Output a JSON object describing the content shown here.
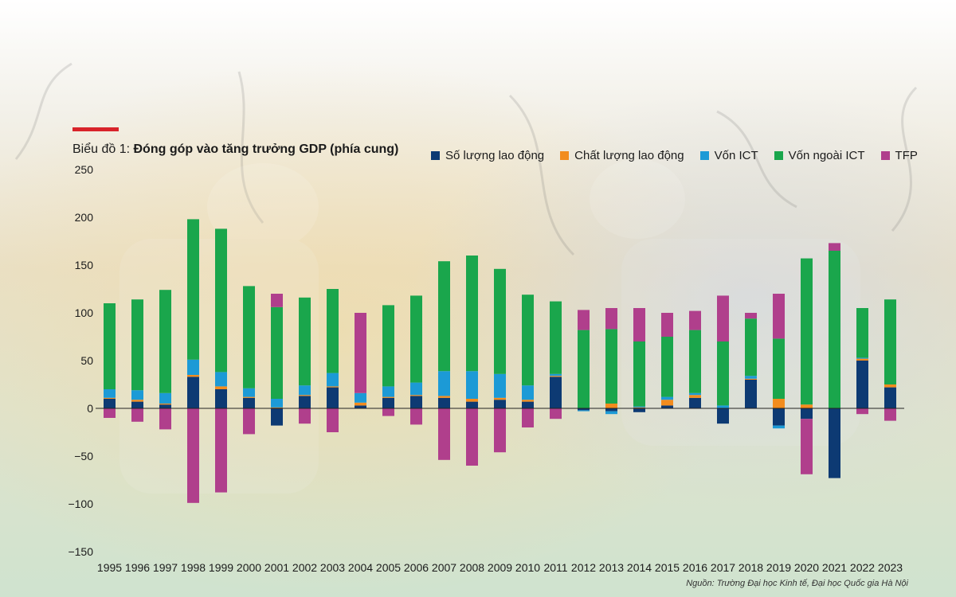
{
  "colors": {
    "accent": "#d8232a",
    "labor_quantity": "#0d3a73",
    "labor_quality": "#f28c1e",
    "ict_capital": "#1c9ad6",
    "non_ict_capital": "#1aa64c",
    "tfp": "#b03f8c"
  },
  "header": {
    "title_prefix": "Biểu đồ 1: ",
    "title_main": "Đóng góp vào tăng trưởng GDP (phía cung)"
  },
  "source": "Nguồn: Trường Đại học Kinh tế, Đại học Quốc gia Hà Nội",
  "chart_data": {
    "type": "bar",
    "stacked": true,
    "title": "Biểu đồ 1: Đóng góp vào tăng trưởng GDP (phía cung)",
    "xlabel": "",
    "ylabel": "",
    "ylim": [
      -150,
      250
    ],
    "yticks": [
      250,
      200,
      150,
      100,
      50,
      0,
      -50,
      -100,
      -150
    ],
    "legend_position": "top",
    "categories": [
      "1995",
      "1996",
      "1997",
      "1998",
      "1999",
      "2000",
      "2001",
      "2002",
      "2003",
      "2004",
      "2005",
      "2006",
      "2007",
      "2008",
      "2009",
      "2010",
      "2011",
      "2012",
      "2013",
      "2014",
      "2015",
      "2016",
      "2017",
      "2018",
      "2019",
      "2020",
      "2021",
      "2022",
      "2023"
    ],
    "series": [
      {
        "key": "labor_quantity",
        "name": "Số lượng lao động",
        "values": [
          10,
          7,
          4,
          33,
          20,
          11,
          -18,
          13,
          22,
          3,
          11,
          13,
          11,
          7,
          9,
          7,
          33,
          -2,
          -3,
          -4,
          3,
          11,
          -16,
          30,
          -18,
          -11,
          -73,
          50,
          22
        ]
      },
      {
        "key": "labor_quality",
        "name": "Chất lượng lao động",
        "values": [
          1,
          2,
          1,
          2,
          3,
          1,
          1,
          1,
          1,
          3,
          1,
          1,
          2,
          3,
          2,
          2,
          1,
          0,
          5,
          1,
          6,
          3,
          0,
          1,
          10,
          4,
          0,
          2,
          3
        ]
      },
      {
        "key": "ict_capital",
        "name": "Vốn ICT",
        "values": [
          9,
          10,
          11,
          16,
          15,
          9,
          9,
          10,
          14,
          10,
          11,
          13,
          26,
          29,
          25,
          15,
          2,
          -1,
          -3,
          1,
          3,
          2,
          3,
          3,
          -3,
          0,
          0,
          1,
          0
        ]
      },
      {
        "key": "non_ict_capital",
        "name": "Vốn ngoài ICT",
        "values": [
          90,
          95,
          108,
          147,
          150,
          107,
          96,
          92,
          88,
          0,
          85,
          91,
          115,
          121,
          110,
          95,
          76,
          82,
          78,
          68,
          63,
          66,
          67,
          60,
          63,
          153,
          165,
          52,
          89
        ]
      },
      {
        "key": "tfp",
        "name": "TFP",
        "values": [
          -10,
          -14,
          -22,
          -99,
          -88,
          -27,
          14,
          -16,
          -25,
          84,
          -8,
          -17,
          -54,
          -60,
          -46,
          -20,
          -11,
          21,
          22,
          35,
          25,
          20,
          48,
          6,
          47,
          -58,
          8,
          -6,
          -13
        ]
      }
    ]
  }
}
